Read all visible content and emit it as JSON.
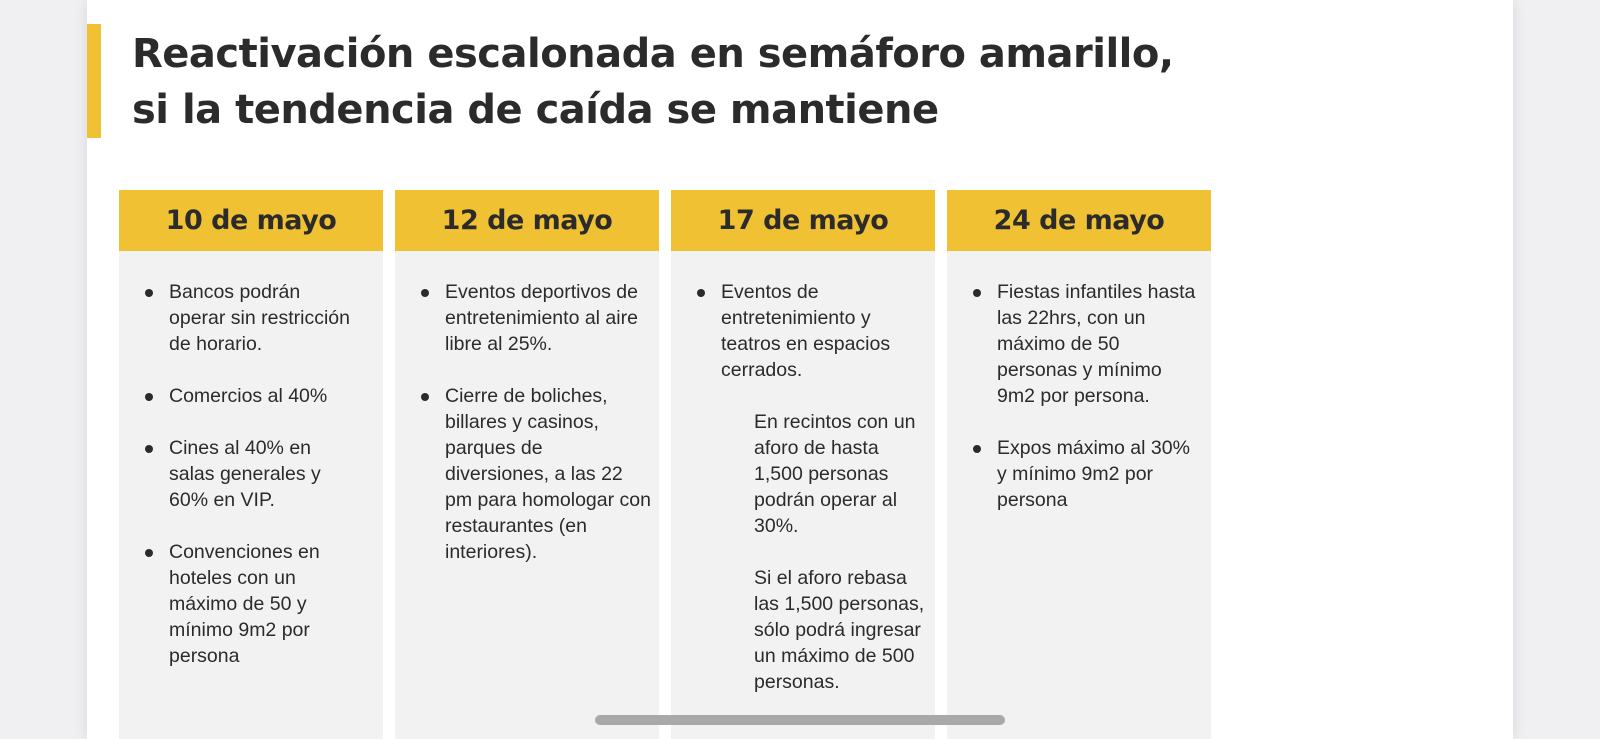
{
  "slide": {
    "title_lines": [
      "Reactivación escalonada en semáforo amarillo,",
      "si la tendencia de caída se mantiene"
    ],
    "columns": [
      {
        "date": "10 de mayo",
        "items": [
          "Bancos podrán operar sin restricción de horario.",
          "Comercios al 40%",
          "Cines al 40% en salas generales y 60% en VIP.",
          "Convenciones en hoteles con un máximo de 50 y mínimo 9m2 por persona"
        ]
      },
      {
        "date": "12 de mayo",
        "items": [
          "Eventos deportivos de entretenimiento al aire libre al 25%.",
          "Cierre de boliches, billares y casinos, parques de diversiones, a las 22 pm para homologar con restaurantes (en interiores)."
        ]
      },
      {
        "date": "17 de mayo",
        "items": [
          "Eventos de entretenimiento y teatros en espacios cerrados."
        ],
        "sub_items": [
          "En recintos con un aforo de hasta 1,500 personas podrán operar al 30%.",
          "Si el aforo rebasa las 1,500 personas, sólo podrá ingresar un máximo de 500 personas."
        ]
      },
      {
        "date": "24 de mayo",
        "items": [
          "Fiestas infantiles hasta las 22hrs, con un máximo de 50 personas y mínimo 9m2 por persona.",
          "Expos máximo al 30% y mínimo 9m2 por persona"
        ]
      }
    ]
  },
  "colors": {
    "accent": "#f0c233",
    "text": "#2b2b2b",
    "column_bg": "#f2f2f2"
  }
}
